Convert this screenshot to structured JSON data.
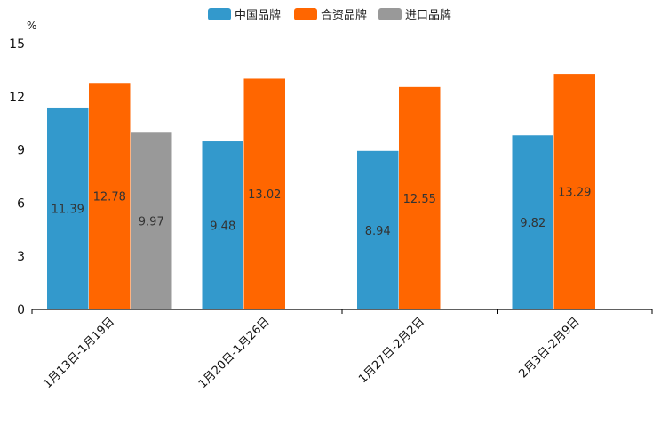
{
  "chart_data": {
    "type": "bar",
    "title": "",
    "xlabel": "",
    "ylabel": "%",
    "ylim": [
      0,
      15
    ],
    "yticks": [
      0,
      3,
      6,
      9,
      12,
      15
    ],
    "grid": false,
    "legend_position": "top-center",
    "categories": [
      "1月13日-1月19日",
      "1月20日-1月26日",
      "1月27日-2月2日",
      "2月3日-2月9日"
    ],
    "series": [
      {
        "name": "中国品牌",
        "color": "#3399cc",
        "values": [
          11.39,
          9.48,
          8.94,
          9.82
        ]
      },
      {
        "name": "合资品牌",
        "color": "#ff6600",
        "values": [
          12.78,
          13.02,
          12.55,
          13.29
        ]
      },
      {
        "name": "进口品牌",
        "color": "#999999",
        "values": [
          9.97,
          null,
          null,
          null
        ]
      }
    ]
  }
}
